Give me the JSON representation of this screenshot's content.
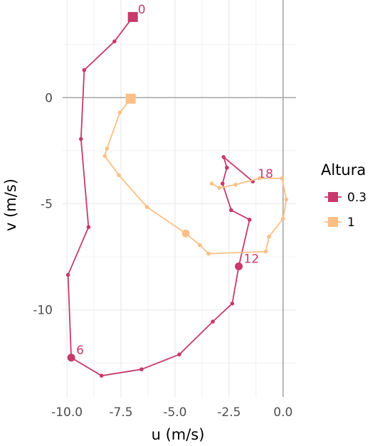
{
  "chart_data": {
    "type": "line",
    "title": "",
    "xlabel": "u (m/s)",
    "ylabel": "v (m/s)",
    "xlim": [
      -10.2,
      0.6
    ],
    "ylim": [
      -14.1,
      4.6
    ],
    "x_ticks": [
      -10.0,
      -7.5,
      -5.0,
      -2.5,
      0.0
    ],
    "x_tick_labels": [
      "-10.0",
      "-7.5",
      "-5.0",
      "-2.5",
      "0.0"
    ],
    "y_ticks": [
      -10,
      -5,
      0
    ],
    "y_tick_labels": [
      "-10",
      "-5",
      "0"
    ],
    "grid": true,
    "legend": {
      "title": "Altura",
      "position": "right"
    },
    "series": [
      {
        "name": "0.3",
        "color": "#c73a6b",
        "start_marker": "square",
        "points": [
          [
            -6.95,
            3.8
          ],
          [
            -7.8,
            2.65
          ],
          [
            -9.2,
            1.3
          ],
          [
            -9.35,
            -1.95
          ],
          [
            -9.0,
            -6.1
          ],
          [
            -9.95,
            -8.35
          ],
          [
            -9.8,
            -12.25
          ],
          [
            -8.4,
            -13.1
          ],
          [
            -6.55,
            -12.8
          ],
          [
            -4.8,
            -12.1
          ],
          [
            -3.25,
            -10.55
          ],
          [
            -2.35,
            -9.7
          ],
          [
            -2.05,
            -7.95
          ],
          [
            -1.55,
            -5.75
          ],
          [
            -2.4,
            -5.3
          ],
          [
            -2.8,
            -4.05
          ],
          [
            -2.6,
            -3.3
          ],
          [
            -2.75,
            -2.8
          ],
          [
            -1.4,
            -3.95
          ]
        ],
        "labels": [
          {
            "index": 0,
            "text": "0"
          },
          {
            "index": 6,
            "text": "6"
          },
          {
            "index": 12,
            "text": "12"
          },
          {
            "index": 18,
            "text": "18"
          }
        ]
      },
      {
        "name": "1",
        "color": "#fdbf86",
        "start_marker": "square",
        "points": [
          [
            -7.05,
            -0.05
          ],
          [
            -7.55,
            -0.7
          ],
          [
            -8.15,
            -2.4
          ],
          [
            -8.25,
            -2.75
          ],
          [
            -7.6,
            -3.65
          ],
          [
            -6.3,
            -5.15
          ],
          [
            -4.5,
            -6.4
          ],
          [
            -3.85,
            -6.95
          ],
          [
            -3.45,
            -7.35
          ],
          [
            -0.8,
            -7.25
          ],
          [
            -0.65,
            -6.55
          ],
          [
            0.0,
            -5.7
          ],
          [
            0.15,
            -4.8
          ],
          [
            -0.05,
            -3.8
          ],
          [
            -1.1,
            -3.8
          ],
          [
            -2.2,
            -4.1
          ],
          [
            -2.95,
            -4.25
          ],
          [
            -3.3,
            -4.05
          ]
        ],
        "labels": []
      }
    ]
  }
}
